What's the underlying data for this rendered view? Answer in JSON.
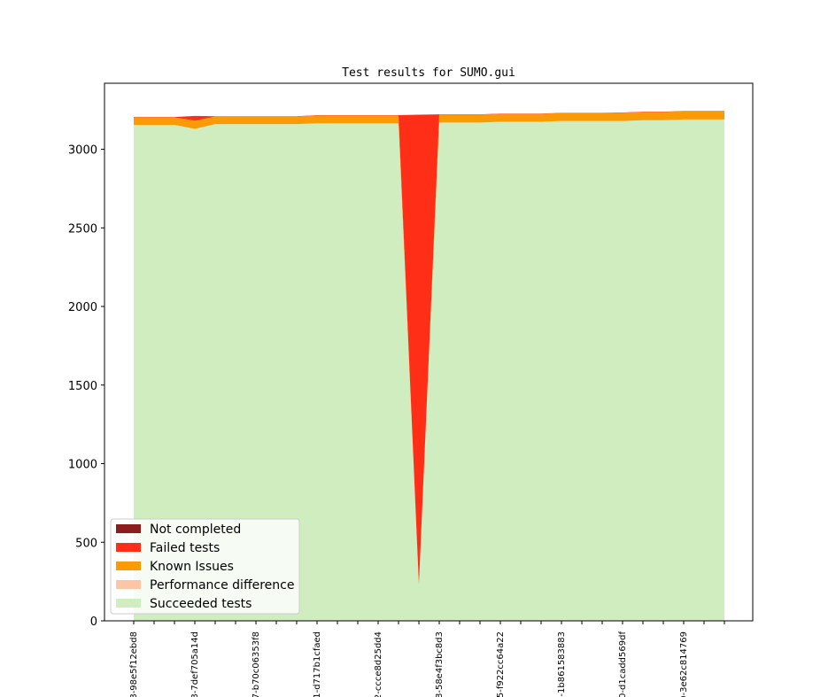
{
  "chart_data": {
    "type": "area",
    "title": "Test results for SUMO.gui",
    "xlabel": "",
    "ylabel": "",
    "ylim": [
      0,
      3420
    ],
    "yticks": [
      0,
      500,
      1000,
      1500,
      2000,
      2500,
      3000
    ],
    "stacked": true,
    "legend_position": "lower-left",
    "grid": false,
    "xtick_labels": [
      "8-98e5f12ebd8",
      "8-7def705a14d",
      "7-b70c06353f8",
      "1-d717b1cfaed",
      "2-ccce8d25dd4",
      "8-58e4f3bc8d3",
      "5-f922cc64a22",
      "5-1b861583883",
      "0-d1cadd569df",
      "0-3e62c814769"
    ],
    "xtick_label_every": 3,
    "series": [
      {
        "name": "Succeeded tests",
        "color": "#d0edc0",
        "values": [
          3155,
          3155,
          3155,
          3130,
          3160,
          3160,
          3160,
          3160,
          3160,
          3165,
          3165,
          3165,
          3165,
          3165,
          230,
          3170,
          3170,
          3170,
          3175,
          3175,
          3175,
          3180,
          3180,
          3180,
          3180,
          3185,
          3185,
          3190,
          3190,
          3190
        ]
      },
      {
        "name": "Performance difference",
        "color": "#fcc5a8",
        "values": [
          0,
          0,
          0,
          0,
          0,
          0,
          0,
          0,
          0,
          0,
          0,
          0,
          0,
          0,
          0,
          0,
          0,
          0,
          0,
          0,
          0,
          0,
          0,
          0,
          0,
          0,
          0,
          0,
          0,
          0
        ]
      },
      {
        "name": "Known Issues",
        "color": "#fb9a07",
        "values": [
          48,
          48,
          48,
          52,
          48,
          48,
          48,
          48,
          48,
          50,
          50,
          50,
          50,
          50,
          0,
          50,
          50,
          50,
          50,
          50,
          50,
          50,
          50,
          50,
          52,
          52,
          52,
          52,
          52,
          52
        ]
      },
      {
        "name": "Failed tests",
        "color": "#ff2e17",
        "values": [
          2,
          2,
          2,
          30,
          2,
          2,
          2,
          2,
          2,
          2,
          2,
          2,
          2,
          2,
          2990,
          2,
          2,
          2,
          2,
          2,
          2,
          2,
          2,
          2,
          2,
          2,
          2,
          2,
          2,
          2
        ]
      },
      {
        "name": "Not completed",
        "color": "#891e1c",
        "values": [
          0,
          0,
          0,
          0,
          0,
          0,
          0,
          0,
          0,
          0,
          0,
          0,
          0,
          0,
          0,
          0,
          0,
          0,
          0,
          0,
          0,
          0,
          0,
          0,
          0,
          0,
          0,
          0,
          0,
          0
        ]
      }
    ],
    "legend_order": [
      "Not completed",
      "Failed tests",
      "Known Issues",
      "Performance difference",
      "Succeeded tests"
    ]
  }
}
